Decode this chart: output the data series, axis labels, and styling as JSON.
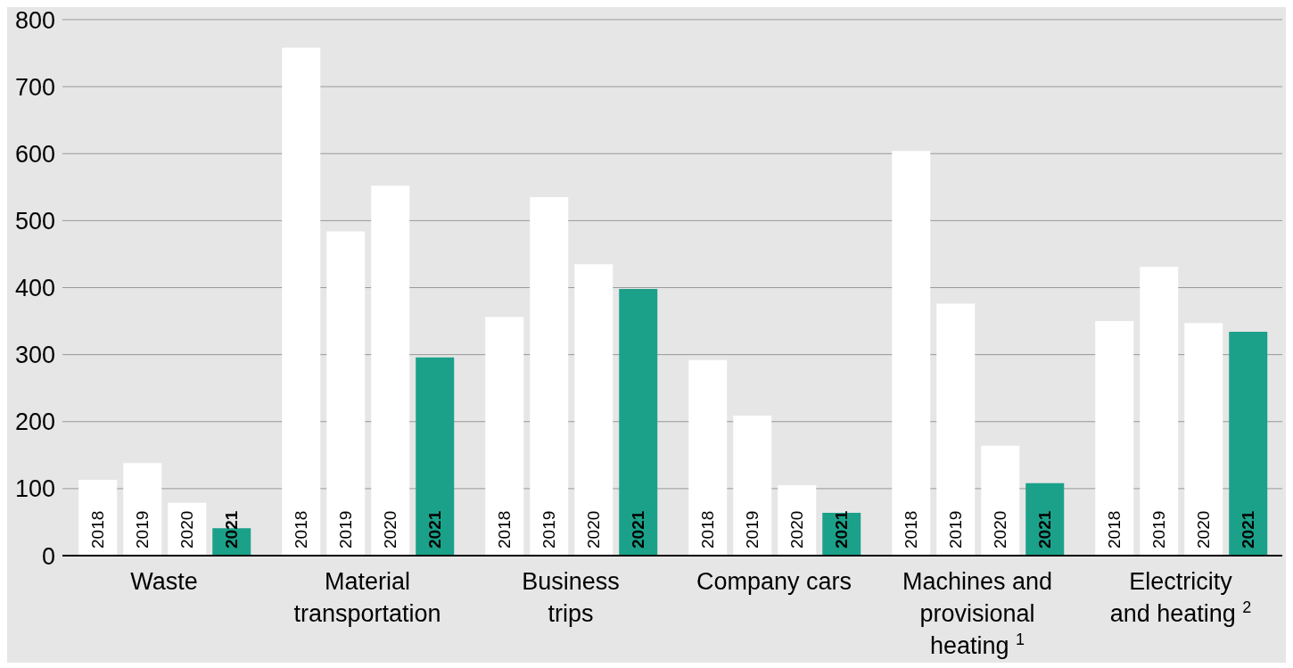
{
  "chart_data": {
    "type": "bar",
    "categories": [
      "Waste",
      "Material transportation",
      "Business trips",
      "Company cars",
      "Machines and provisional heating $^{1}$",
      "Electricity and heating $^{2}$"
    ],
    "series": [
      {
        "name": "2018",
        "color": "#ffffff",
        "values": [
          113,
          758,
          356,
          292,
          604,
          350
        ]
      },
      {
        "name": "2019",
        "color": "#ffffff",
        "values": [
          138,
          484,
          535,
          209,
          376,
          431
        ]
      },
      {
        "name": "2020",
        "color": "#ffffff",
        "values": [
          79,
          552,
          435,
          105,
          164,
          347
        ]
      },
      {
        "name": "2021",
        "color": "#1ba18a",
        "values": [
          41,
          296,
          398,
          64,
          108,
          334
        ]
      }
    ],
    "ylim": [
      0,
      800
    ],
    "yticks": [
      0,
      100,
      200,
      300,
      400,
      500,
      600,
      700,
      800
    ],
    "grid": "y",
    "legend": false
  }
}
